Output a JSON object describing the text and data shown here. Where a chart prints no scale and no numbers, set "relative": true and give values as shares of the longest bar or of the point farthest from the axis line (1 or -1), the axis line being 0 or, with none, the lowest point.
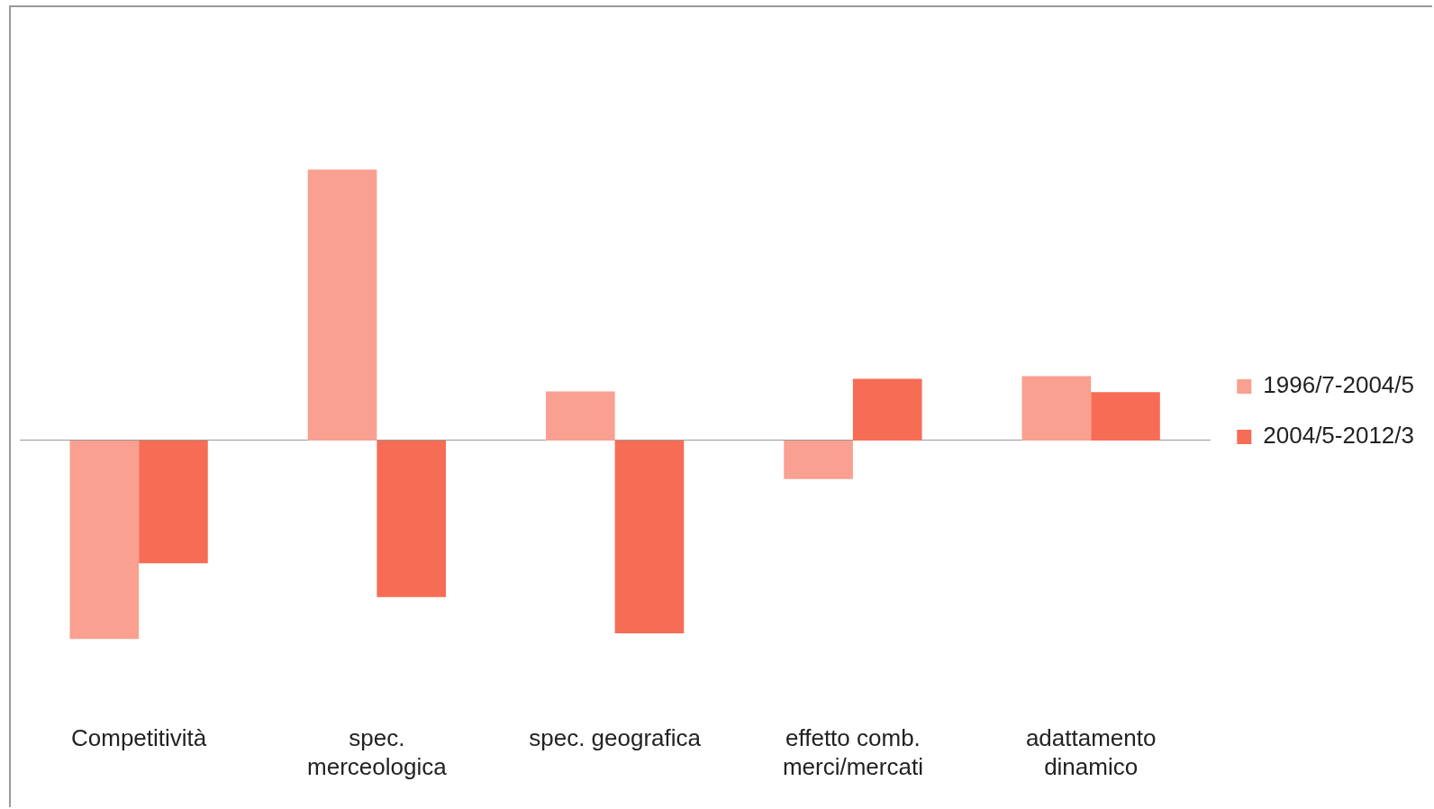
{
  "chart_data": {
    "type": "bar",
    "relative": true,
    "categories": [
      "Competitività",
      "spec. merceologica",
      "spec. geografica",
      "effetto comb. merci/mercati",
      "adattamento dinamico"
    ],
    "series": [
      {
        "name": "1996/7-2004/5",
        "color": "#f9a090",
        "values": [
          -0.733,
          1,
          0.181,
          -0.142,
          0.238
        ]
      },
      {
        "name": "2004/5-2012/3",
        "color": "#f76c55",
        "values": [
          -0.453,
          -0.578,
          -0.712,
          0.228,
          0.179
        ]
      }
    ],
    "legend": "right"
  }
}
